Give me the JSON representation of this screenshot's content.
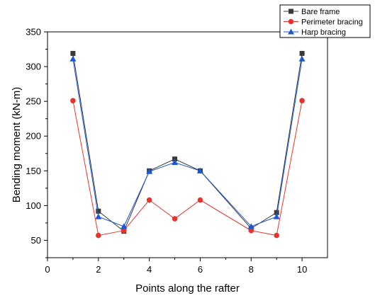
{
  "chart_data": {
    "type": "line",
    "title": "",
    "xlabel": "Points along the rafter",
    "ylabel": "Bending moment (kN-m)",
    "xlim": [
      0,
      11
    ],
    "ylim": [
      25,
      350
    ],
    "xticks": [
      0,
      2,
      4,
      6,
      8,
      10
    ],
    "yticks": [
      50,
      100,
      150,
      200,
      250,
      300,
      350
    ],
    "grid": false,
    "legend_position": "top-right",
    "series": [
      {
        "name": "Bare frame",
        "color": "#3a3a3a",
        "marker": "square",
        "x": [
          1,
          2,
          3,
          4,
          5,
          6,
          8,
          9,
          10
        ],
        "y": [
          319,
          92,
          63,
          150,
          167,
          150,
          67,
          90,
          319
        ]
      },
      {
        "name": "Perimeter bracing",
        "color": "#e8322c",
        "marker": "circle",
        "x": [
          1,
          2,
          3,
          4,
          5,
          6,
          8,
          9,
          10
        ],
        "y": [
          251,
          57,
          64,
          108,
          81,
          108,
          64,
          57,
          251
        ]
      },
      {
        "name": "Harp bracing",
        "color": "#1a56d6",
        "marker": "triangle",
        "x": [
          1,
          2,
          3,
          4,
          5,
          6,
          8,
          9,
          10
        ],
        "y": [
          311,
          84,
          70,
          149,
          162,
          150,
          70,
          84,
          311
        ]
      }
    ]
  }
}
